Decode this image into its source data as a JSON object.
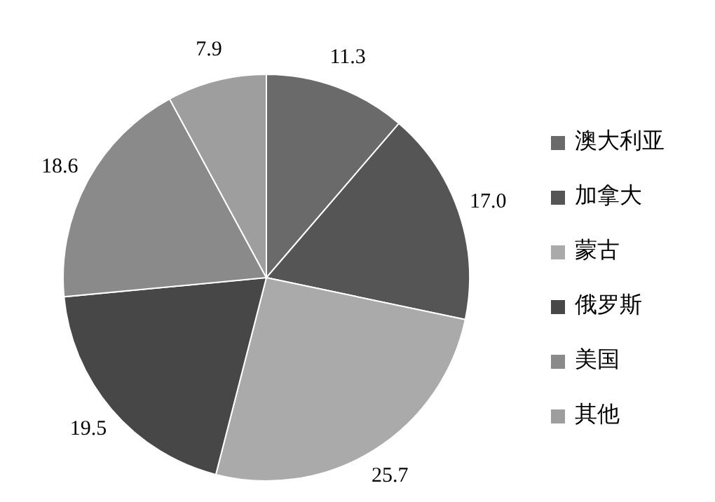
{
  "chart_data": {
    "type": "pie",
    "categories": [
      "澳大利亚",
      "加拿大",
      "蒙古",
      "俄罗斯",
      "美国",
      "其他"
    ],
    "values": [
      11.3,
      17.0,
      25.7,
      19.5,
      18.6,
      7.9
    ],
    "value_labels": [
      "11.3",
      "17.0",
      "25.7",
      "19.5",
      "18.6",
      "7.9"
    ],
    "colors": [
      "#6a6a6a",
      "#555555",
      "#aaaaaa",
      "#474747",
      "#8a8a8a",
      "#9e9e9e"
    ],
    "legend": "right"
  }
}
